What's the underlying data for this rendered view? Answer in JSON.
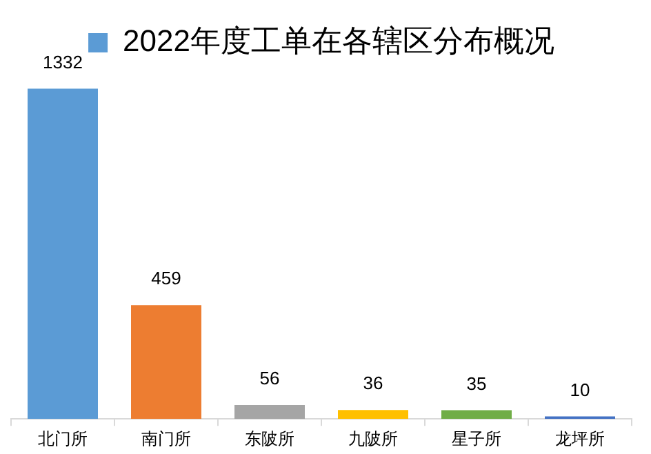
{
  "chart_data": {
    "type": "bar",
    "categories": [
      "北门所",
      "南门所",
      "东陂所",
      "九陂所",
      "星子所",
      "龙坪所"
    ],
    "series": [
      {
        "name": "2022年度工单在各辖区分布概况",
        "color": "#5b9bd5",
        "colors": [
          "#5b9bd5",
          "#ed7d31",
          "#a5a5a5",
          "#ffc000",
          "#70ad47",
          "#4472c4"
        ],
        "values": [
          1332,
          459,
          56,
          36,
          35,
          10
        ]
      }
    ],
    "tick_labels": "x",
    "data_labels": true,
    "legend": "top",
    "grid": false
  }
}
